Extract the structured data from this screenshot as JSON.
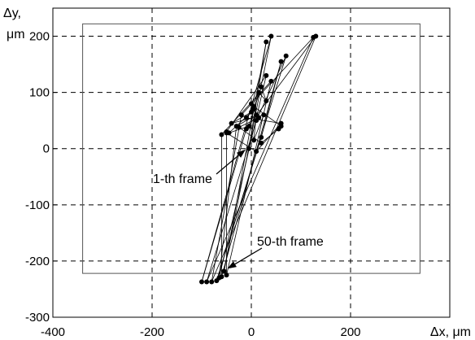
{
  "chart_data": {
    "type": "line",
    "title": "",
    "xlabel": "Δx, μm",
    "ylabel_line1": "Δy,",
    "ylabel_line2": "μm",
    "xlim": [
      -400,
      400
    ],
    "ylim": [
      -300,
      250
    ],
    "x_ticks": [
      -400,
      -200,
      0,
      200
    ],
    "y_ticks": [
      -300,
      -200,
      -100,
      0,
      100,
      200
    ],
    "x_tick_labels": [
      "-400",
      "-200",
      "0",
      "200"
    ],
    "y_tick_labels": [
      "-300",
      "-200",
      "-100",
      "0",
      "100",
      "200"
    ],
    "grid": "dashed",
    "legend": "none",
    "frame_rectangle": {
      "x": [
        -340,
        340
      ],
      "y": [
        -222,
        222
      ]
    },
    "series": [
      {
        "values": [
          [
            -5,
            0
          ],
          [
            30,
            190
          ],
          [
            -55,
            -218
          ],
          [
            40,
            200
          ],
          [
            -100,
            -237
          ],
          [
            -10,
            35
          ],
          [
            130,
            200
          ],
          [
            -80,
            -237
          ],
          [
            -20,
            60
          ],
          [
            125,
            198
          ],
          [
            -90,
            -237
          ],
          [
            10,
            50
          ],
          [
            70,
            165
          ],
          [
            -70,
            -235
          ],
          [
            20,
            20
          ],
          [
            60,
            155
          ],
          [
            -60,
            -228
          ],
          [
            -60,
            25
          ],
          [
            40,
            120
          ],
          [
            -50,
            -225
          ],
          [
            -50,
            30
          ],
          [
            30,
            130
          ],
          [
            -65,
            -230
          ],
          [
            -30,
            40
          ],
          [
            10,
            60
          ],
          [
            5,
            15
          ],
          [
            25,
            60
          ],
          [
            -40,
            45
          ],
          [
            0,
            65
          ],
          [
            -45,
            28
          ],
          [
            -5,
            40
          ],
          [
            20,
            110
          ],
          [
            30,
            85
          ],
          [
            15,
            100
          ],
          [
            0,
            80
          ],
          [
            5,
            75
          ],
          [
            60,
            40
          ],
          [
            55,
            35
          ],
          [
            20,
            10
          ],
          [
            -25,
            38
          ],
          [
            15,
            55
          ],
          [
            5,
            70
          ],
          [
            -10,
            55
          ],
          [
            60,
            45
          ],
          [
            10,
            -5
          ],
          [
            -50,
            28
          ]
        ]
      }
    ],
    "annotations": [
      {
        "text": "1-th frame",
        "points_to": [
          -5,
          0
        ]
      },
      {
        "text": "50-th frame",
        "points_to": [
          -55,
          -218
        ]
      }
    ]
  }
}
